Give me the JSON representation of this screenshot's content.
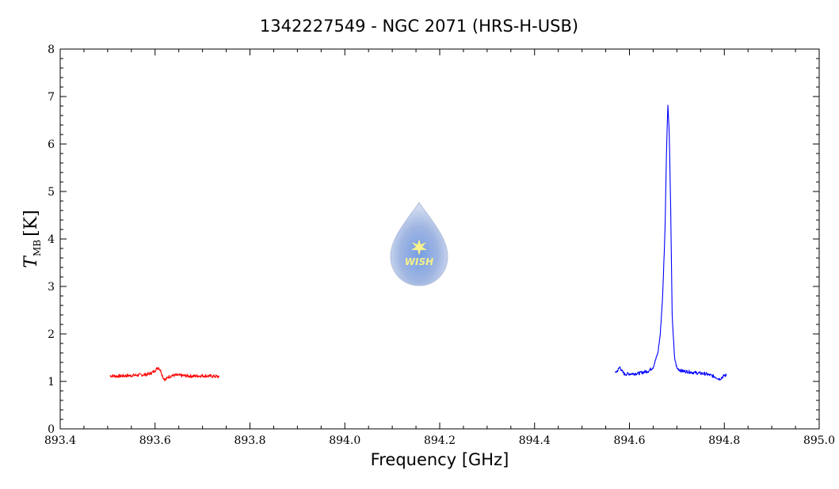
{
  "chart_data": {
    "type": "line",
    "title": "1342227549 - NGC 2071 (HRS-H-USB)",
    "xlabel": "Frequency [GHz]",
    "ylabel": {
      "main": "T",
      "sub": "MB",
      "unit": "[K]"
    },
    "xlim": [
      893.4,
      895.0
    ],
    "ylim": [
      0,
      8
    ],
    "xticks": [
      "893.4",
      "893.6",
      "893.8",
      "894.0",
      "894.2",
      "894.4",
      "894.6",
      "894.8",
      "895.0"
    ],
    "yticks": [
      "0",
      "1",
      "2",
      "3",
      "4",
      "5",
      "6",
      "7",
      "8"
    ],
    "grid": false,
    "series": [
      {
        "color": "#ff0000",
        "x": [
          893.505,
          893.52,
          893.54,
          893.56,
          893.575,
          893.585,
          893.595,
          893.602,
          893.607,
          893.612,
          893.617,
          893.622,
          893.627,
          893.635,
          893.645,
          893.66,
          893.68,
          893.7,
          893.72,
          893.735
        ],
        "y": [
          1.12,
          1.11,
          1.12,
          1.13,
          1.14,
          1.15,
          1.19,
          1.25,
          1.3,
          1.22,
          1.08,
          1.03,
          1.09,
          1.12,
          1.13,
          1.12,
          1.11,
          1.12,
          1.11,
          1.1
        ]
      },
      {
        "color": "#0000ff",
        "x": [
          894.57,
          894.575,
          894.58,
          894.585,
          894.59,
          894.6,
          894.62,
          894.64,
          894.65,
          894.66,
          894.665,
          894.67,
          894.675,
          894.678,
          894.681,
          894.684,
          894.687,
          894.69,
          894.695,
          894.7,
          894.71,
          894.72,
          894.74,
          894.76,
          894.78,
          894.79,
          894.8,
          894.805
        ],
        "y": [
          1.18,
          1.23,
          1.3,
          1.2,
          1.15,
          1.16,
          1.17,
          1.22,
          1.3,
          1.6,
          2.0,
          2.8,
          4.2,
          5.8,
          6.85,
          6.2,
          4.6,
          2.4,
          1.5,
          1.28,
          1.22,
          1.21,
          1.18,
          1.16,
          1.1,
          1.05,
          1.12,
          1.13
        ]
      }
    ]
  },
  "logo": {
    "text": "WISH"
  }
}
